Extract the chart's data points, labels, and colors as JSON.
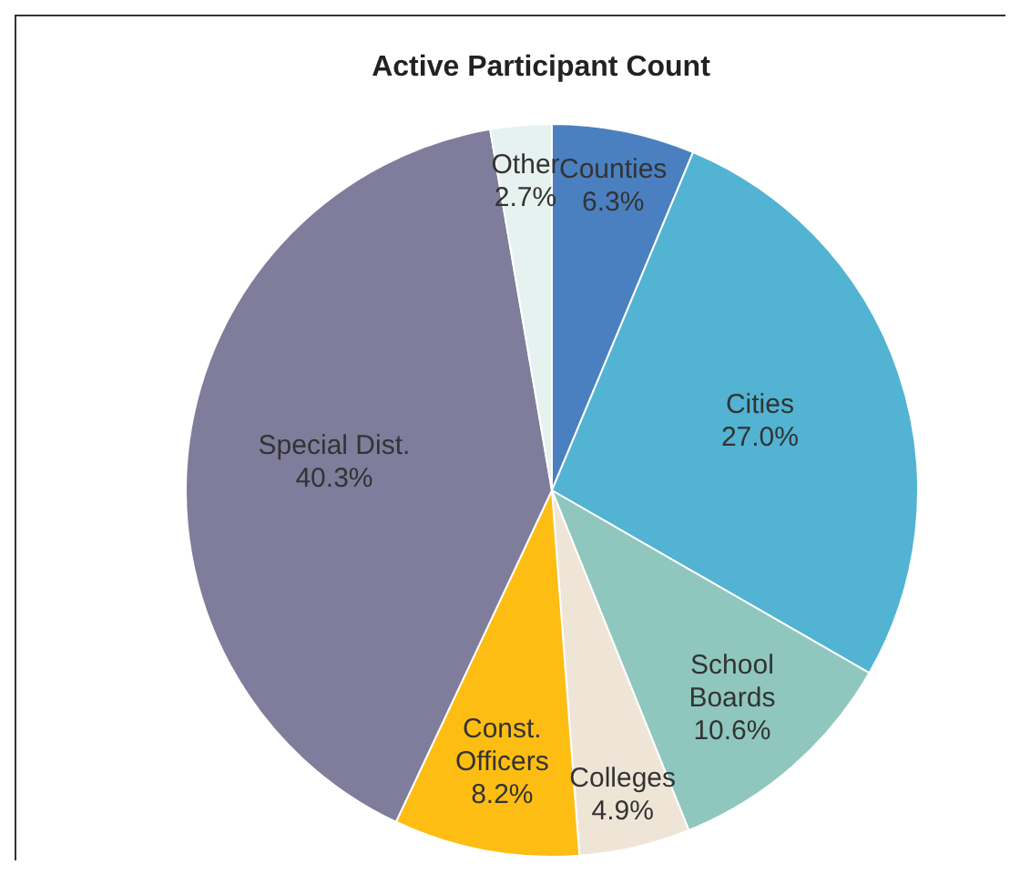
{
  "chart_data": {
    "type": "pie",
    "title": "Active Participant Count",
    "categories": [
      "Counties",
      "Cities",
      "School Boards",
      "Colleges",
      "Const. Officers",
      "Special Dist.",
      "Other"
    ],
    "values": [
      6.3,
      27.0,
      10.6,
      4.9,
      8.2,
      40.3,
      2.7
    ],
    "value_labels": [
      "6.3%",
      "27.0%",
      "10.6%",
      "4.9%",
      "8.2%",
      "40.3%",
      "2.7%"
    ],
    "colors": [
      "#4a80c0",
      "#52b3d3",
      "#8fc7bf",
      "#efe5d7",
      "#fdbd13",
      "#7f7d9b",
      "#e6f2ef"
    ],
    "legend": false
  }
}
